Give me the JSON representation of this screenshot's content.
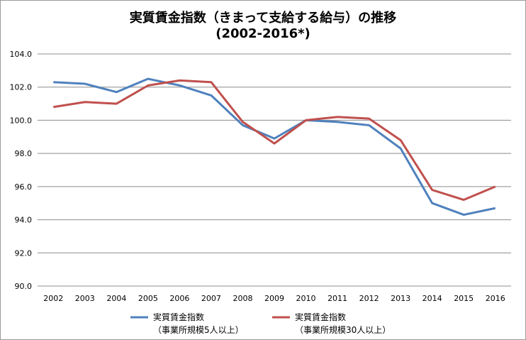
{
  "chart_data": {
    "type": "line",
    "title": "実質賃金指数（きまって支給する給与）の推移",
    "subtitle": "(2002-2016*)",
    "xlabel": "",
    "ylabel": "",
    "categories": [
      "2002",
      "2003",
      "2004",
      "2005",
      "2006",
      "2007",
      "2008",
      "2009",
      "2010",
      "2011",
      "2012",
      "2013",
      "2014",
      "2015",
      "2016"
    ],
    "ylim": [
      90.0,
      104.0
    ],
    "yticks": [
      "90.0",
      "92.0",
      "94.0",
      "96.0",
      "98.0",
      "100.0",
      "102.0",
      "104.0"
    ],
    "grid": true,
    "legend_position": "bottom",
    "series": [
      {
        "name_line1": "実質賃金指数",
        "name_line2": "（事業所規模5人以上）",
        "color": "#4f81bd",
        "values": [
          102.3,
          102.2,
          101.7,
          102.5,
          102.1,
          101.5,
          99.7,
          98.9,
          100.0,
          99.9,
          99.7,
          98.3,
          95.0,
          94.3,
          94.7
        ]
      },
      {
        "name_line1": "実質賃金指数",
        "name_line2": "（事業所規模30人以上）",
        "color": "#c0504d",
        "values": [
          100.8,
          101.1,
          101.0,
          102.1,
          102.4,
          102.3,
          99.9,
          98.6,
          100.0,
          100.2,
          100.1,
          98.8,
          95.8,
          95.2,
          96.0
        ]
      }
    ]
  }
}
